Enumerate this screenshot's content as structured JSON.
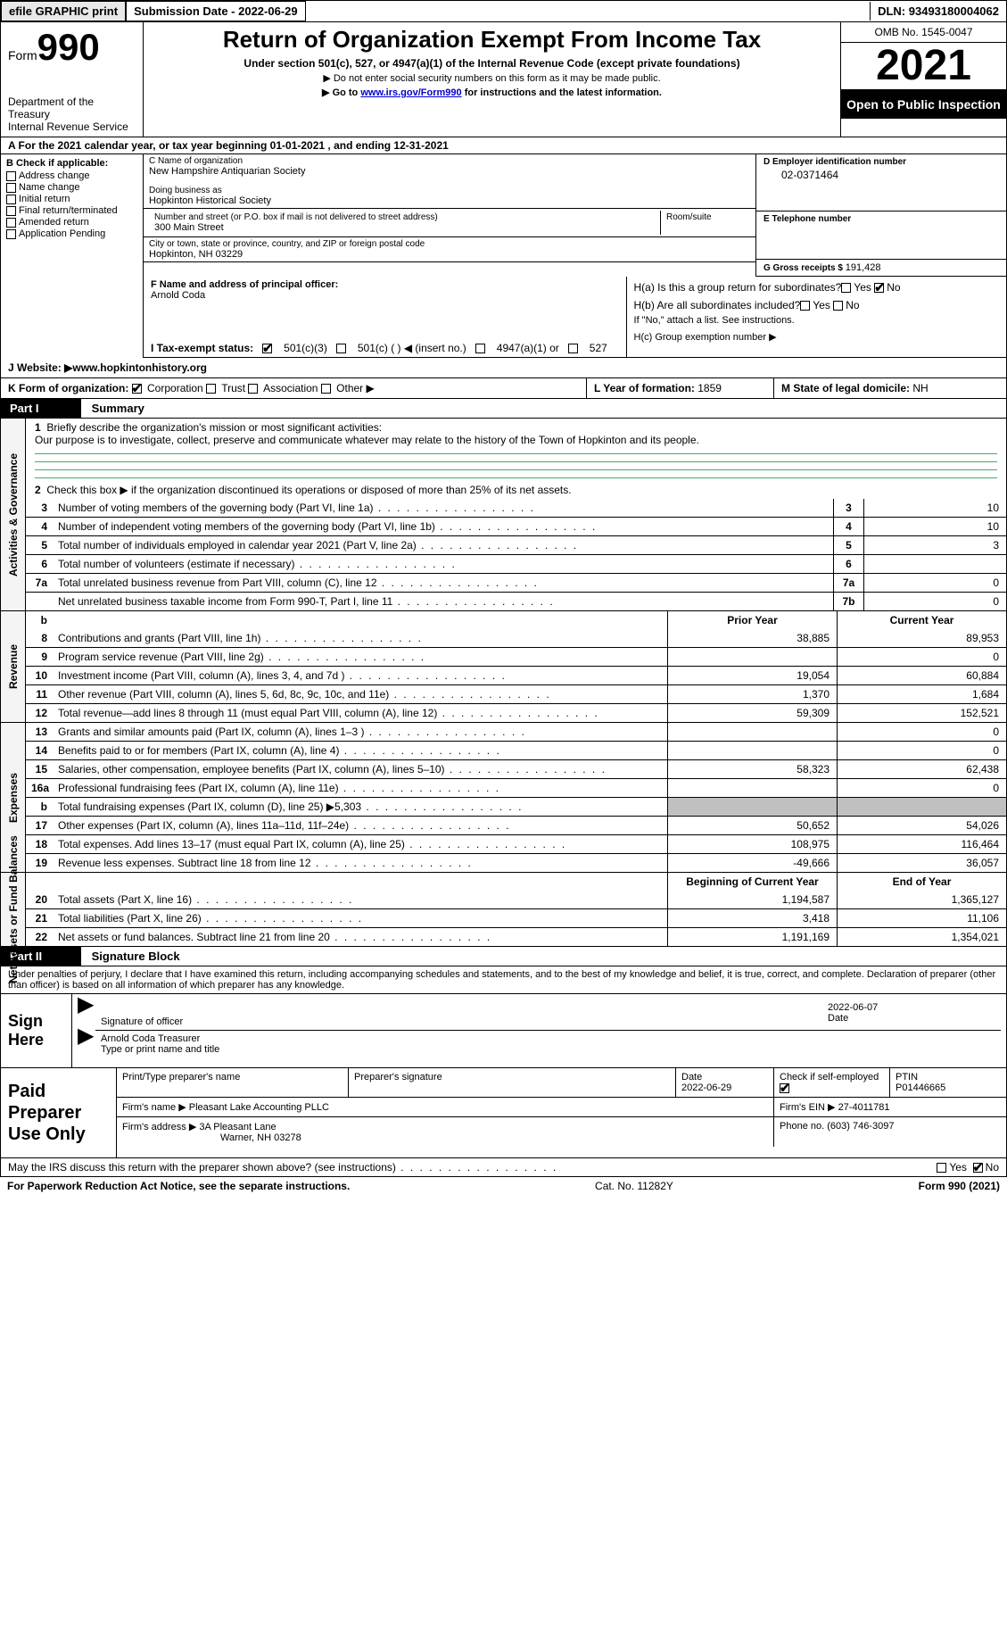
{
  "topbar": {
    "efile": "efile GRAPHIC print",
    "submission_lbl": "Submission Date - ",
    "submission_date": "2022-06-29",
    "dln_lbl": "DLN: ",
    "dln": "93493180004062"
  },
  "header": {
    "form_lbl": "Form",
    "form_no": "990",
    "dept": "Department of the Treasury",
    "irs": "Internal Revenue Service",
    "title": "Return of Organization Exempt From Income Tax",
    "sub": "Under section 501(c), 527, or 4947(a)(1) of the Internal Revenue Code (except private foundations)",
    "note1": "▶ Do not enter social security numbers on this form as it may be made public.",
    "note2_pre": "▶ Go to ",
    "note2_link": "www.irs.gov/Form990",
    "note2_post": " for instructions and the latest information.",
    "omb": "OMB No. 1545-0047",
    "year": "2021",
    "open": "Open to Public Inspection"
  },
  "row_A": {
    "text_pre": "A For the 2021 calendar year, or tax year beginning ",
    "begin": "01-01-2021",
    "mid": "   , and ending ",
    "end": "12-31-2021"
  },
  "col_B": {
    "lbl": "B Check if applicable:",
    "opts": [
      "Address change",
      "Name change",
      "Initial return",
      "Final return/terminated",
      "Amended return",
      "Application Pending"
    ]
  },
  "col_C": {
    "name_lbl": "C Name of organization",
    "name": "New Hampshire Antiquarian Society",
    "dba_lbl": "Doing business as",
    "dba": "Hopkinton Historical Society",
    "street_lbl": "Number and street (or P.O. box if mail is not delivered to street address)",
    "street": "300 Main Street",
    "room_lbl": "Room/suite",
    "city_lbl": "City or town, state or province, country, and ZIP or foreign postal code",
    "city": "Hopkinton, NH  03229"
  },
  "col_D": {
    "ein_lbl": "D Employer identification number",
    "ein": "02-0371464",
    "tel_lbl": "E Telephone number",
    "tel": "",
    "gross_lbl": "G Gross receipts $ ",
    "gross": "191,428"
  },
  "row_F": {
    "lbl": "F  Name and address of principal officer:",
    "name": "Arnold Coda"
  },
  "row_H": {
    "a_lbl": "H(a)  Is this a group return for subordinates?",
    "b_lbl": "H(b)  Are all subordinates included?",
    "b_note": "If \"No,\" attach a list. See instructions.",
    "c_lbl": "H(c)  Group exemption number ▶",
    "yes": "Yes",
    "no": "No"
  },
  "row_I": {
    "lbl": "I  Tax-exempt status:",
    "o1": "501(c)(3)",
    "o2": "501(c) (  ) ◀ (insert no.)",
    "o3": "4947(a)(1) or",
    "o4": "527"
  },
  "row_J": {
    "lbl": "J Website: ▶ ",
    "val": "www.hopkintonhistory.org"
  },
  "row_K": {
    "lbl": "K Form of organization:",
    "o1": "Corporation",
    "o2": "Trust",
    "o3": "Association",
    "o4": "Other ▶",
    "L_lbl": "L Year of formation: ",
    "L_val": "1859",
    "M_lbl": "M State of legal domicile: ",
    "M_val": "NH"
  },
  "parts": {
    "p1": "Part I",
    "p1_title": "Summary",
    "p2": "Part II",
    "p2_title": "Signature Block"
  },
  "summary": {
    "mission_lbl": "Briefly describe the organization's mission or most significant activities:",
    "mission": "Our purpose is to investigate, collect, preserve and communicate whatever may relate to the history of the Town of Hopkinton and its people.",
    "line2": "Check this box ▶       if the organization discontinued its operations or disposed of more than 25% of its net assets.",
    "lines_gov": [
      {
        "n": "3",
        "d": "Number of voting members of the governing body (Part VI, line 1a)",
        "bn": "3",
        "v": "10"
      },
      {
        "n": "4",
        "d": "Number of independent voting members of the governing body (Part VI, line 1b)",
        "bn": "4",
        "v": "10"
      },
      {
        "n": "5",
        "d": "Total number of individuals employed in calendar year 2021 (Part V, line 2a)",
        "bn": "5",
        "v": "3"
      },
      {
        "n": "6",
        "d": "Total number of volunteers (estimate if necessary)",
        "bn": "6",
        "v": ""
      },
      {
        "n": "7a",
        "d": "Total unrelated business revenue from Part VIII, column (C), line 12",
        "bn": "7a",
        "v": "0"
      },
      {
        "n": "",
        "d": "Net unrelated business taxable income from Form 990-T, Part I, line 11",
        "bn": "7b",
        "v": "0"
      }
    ],
    "prior_hdr": "Prior Year",
    "curr_hdr": "Current Year",
    "rev": [
      {
        "n": "8",
        "d": "Contributions and grants (Part VIII, line 1h)",
        "p": "38,885",
        "c": "89,953"
      },
      {
        "n": "9",
        "d": "Program service revenue (Part VIII, line 2g)",
        "p": "",
        "c": "0"
      },
      {
        "n": "10",
        "d": "Investment income (Part VIII, column (A), lines 3, 4, and 7d )",
        "p": "19,054",
        "c": "60,884"
      },
      {
        "n": "11",
        "d": "Other revenue (Part VIII, column (A), lines 5, 6d, 8c, 9c, 10c, and 11e)",
        "p": "1,370",
        "c": "1,684"
      },
      {
        "n": "12",
        "d": "Total revenue—add lines 8 through 11 (must equal Part VIII, column (A), line 12)",
        "p": "59,309",
        "c": "152,521"
      }
    ],
    "exp": [
      {
        "n": "13",
        "d": "Grants and similar amounts paid (Part IX, column (A), lines 1–3 )",
        "p": "",
        "c": "0"
      },
      {
        "n": "14",
        "d": "Benefits paid to or for members (Part IX, column (A), line 4)",
        "p": "",
        "c": "0"
      },
      {
        "n": "15",
        "d": "Salaries, other compensation, employee benefits (Part IX, column (A), lines 5–10)",
        "p": "58,323",
        "c": "62,438"
      },
      {
        "n": "16a",
        "d": "Professional fundraising fees (Part IX, column (A), line 11e)",
        "p": "",
        "c": "0"
      },
      {
        "n": "b",
        "d": "Total fundraising expenses (Part IX, column (D), line 25) ▶5,303",
        "p": "GREY",
        "c": "GREY"
      },
      {
        "n": "17",
        "d": "Other expenses (Part IX, column (A), lines 11a–11d, 11f–24e)",
        "p": "50,652",
        "c": "54,026"
      },
      {
        "n": "18",
        "d": "Total expenses. Add lines 13–17 (must equal Part IX, column (A), line 25)",
        "p": "108,975",
        "c": "116,464"
      },
      {
        "n": "19",
        "d": "Revenue less expenses. Subtract line 18 from line 12",
        "p": "-49,666",
        "c": "36,057"
      }
    ],
    "net_hdr_p": "Beginning of Current Year",
    "net_hdr_c": "End of Year",
    "net": [
      {
        "n": "20",
        "d": "Total assets (Part X, line 16)",
        "p": "1,194,587",
        "c": "1,365,127"
      },
      {
        "n": "21",
        "d": "Total liabilities (Part X, line 26)",
        "p": "3,418",
        "c": "11,106"
      },
      {
        "n": "22",
        "d": "Net assets or fund balances. Subtract line 21 from line 20",
        "p": "1,191,169",
        "c": "1,354,021"
      }
    ]
  },
  "vlabels": {
    "gov": "Activities & Governance",
    "rev": "Revenue",
    "exp": "Expenses",
    "net": "Net Assets or Fund Balances"
  },
  "sig": {
    "intro": "Under penalties of perjury, I declare that I have examined this return, including accompanying schedules and statements, and to the best of my knowledge and belief, it is true, correct, and complete. Declaration of preparer (other than officer) is based on all information of which preparer has any knowledge.",
    "sign_here": "Sign Here",
    "sig_lbl": "Signature of officer",
    "date": "2022-06-07",
    "date_lbl": "Date",
    "name": "Arnold Coda  Treasurer",
    "name_lbl": "Type or print name and title"
  },
  "prep": {
    "lbl": "Paid Preparer Use Only",
    "h_name": "Print/Type preparer's name",
    "h_sig": "Preparer's signature",
    "h_date": "Date",
    "date": "2022-06-29",
    "h_check": "Check        if self-employed",
    "h_ptin": "PTIN",
    "ptin": "P01446665",
    "firm_lbl": "Firm's name     ▶ ",
    "firm": "Pleasant Lake Accounting PLLC",
    "ein_lbl": "Firm's EIN ▶ ",
    "ein": "27-4011781",
    "addr_lbl": "Firm's address ▶ ",
    "addr1": "3A Pleasant Lane",
    "addr2": "Warner, NH  03278",
    "phone_lbl": "Phone no. ",
    "phone": "(603) 746-3097"
  },
  "may": {
    "q": "May the IRS discuss this return with the preparer shown above? (see instructions)",
    "yes": "Yes",
    "no": "No"
  },
  "footer": {
    "l": "For Paperwork Reduction Act Notice, see the separate instructions.",
    "m": "Cat. No. 11282Y",
    "r": "Form 990 (2021)"
  }
}
